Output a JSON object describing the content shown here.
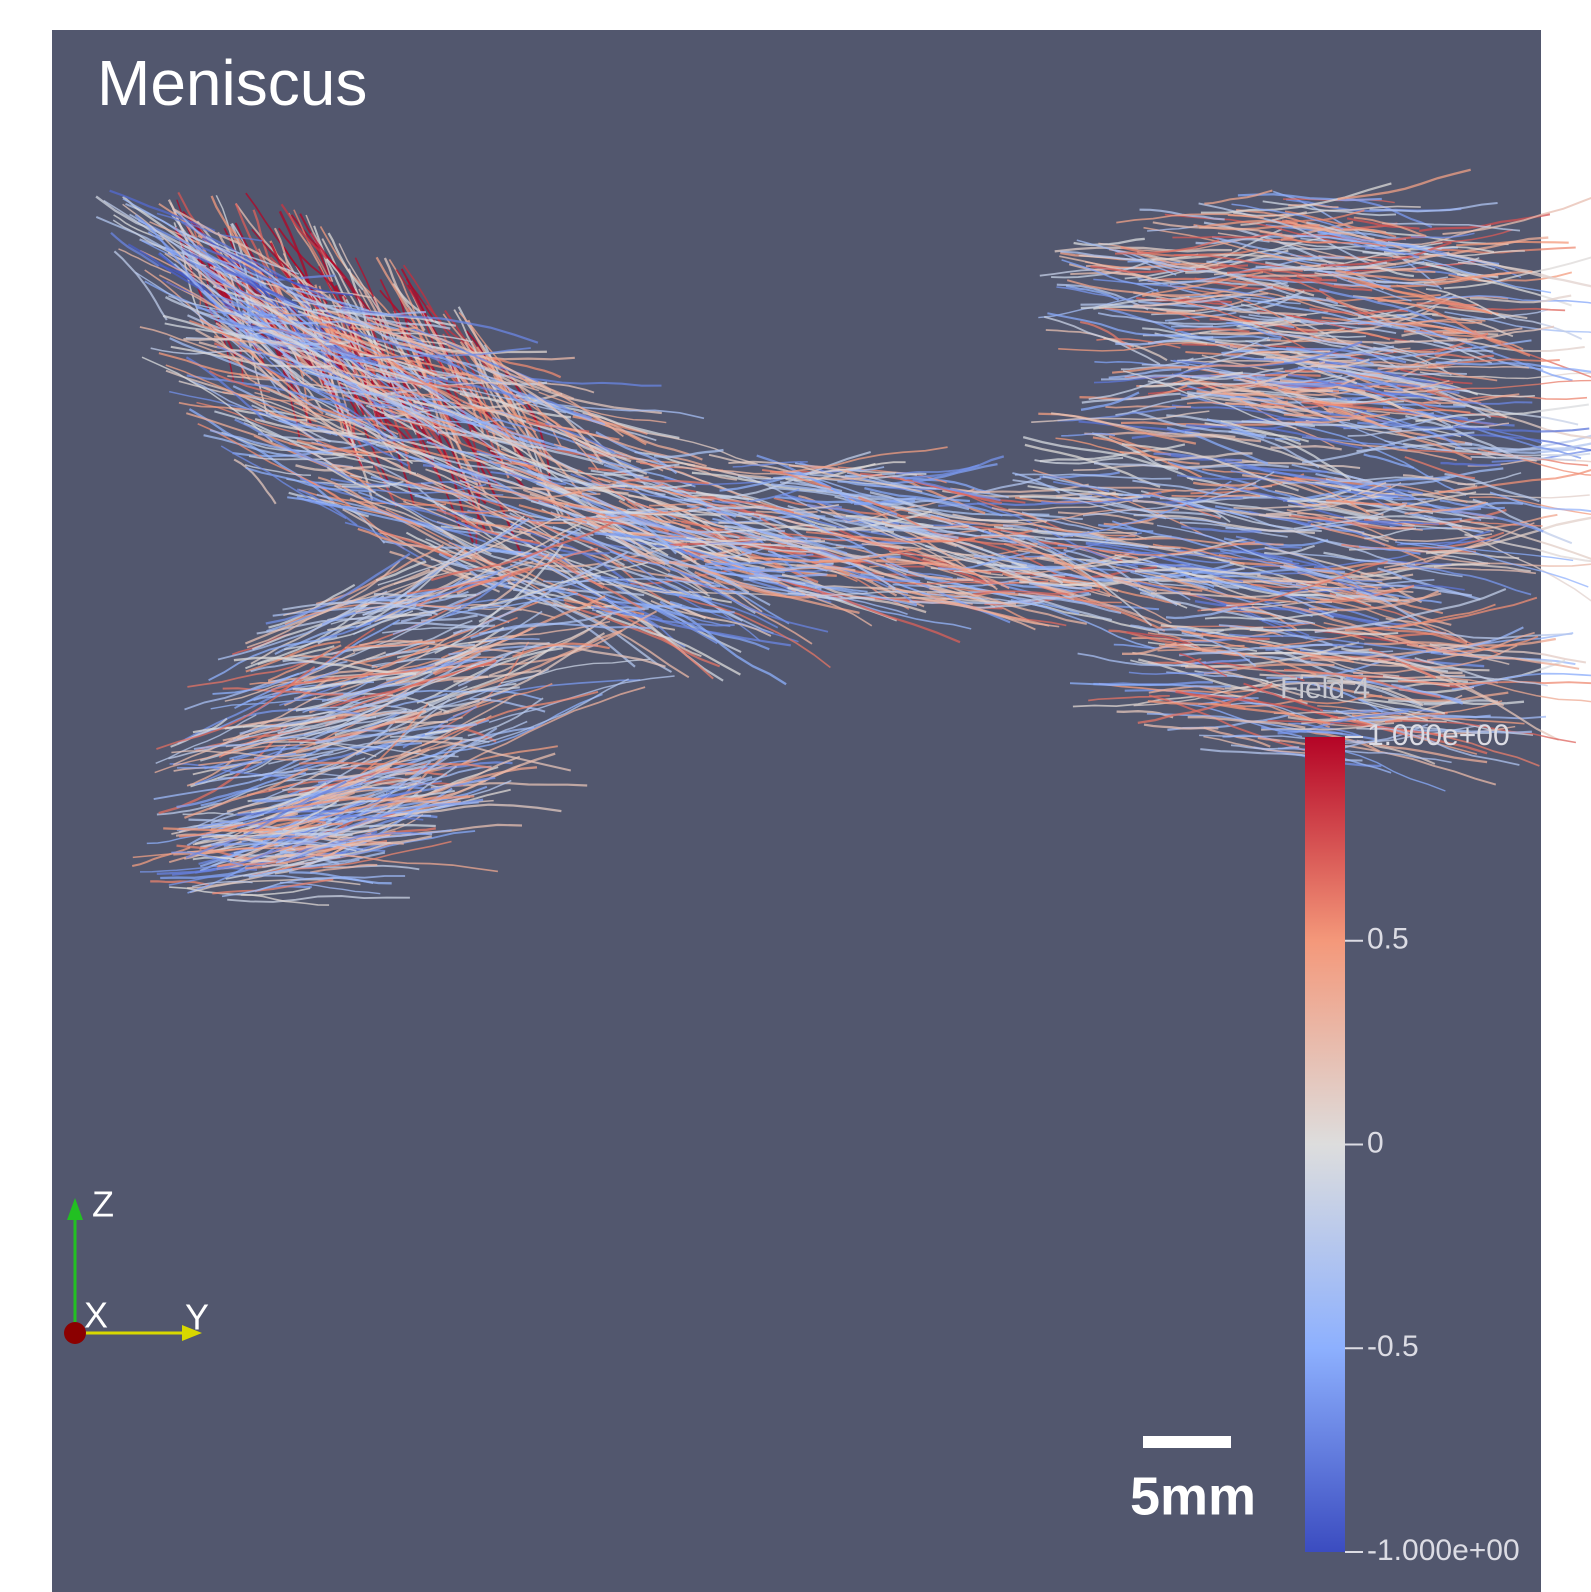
{
  "title": "Meniscus",
  "colorbar": {
    "title": "Field 4",
    "range": [
      -1,
      1
    ],
    "ticks": [
      {
        "value": 1,
        "label": "1.000e+00"
      },
      0.5,
      0,
      -0.5,
      {
        "value": -1,
        "label": "-1.000e+00"
      }
    ]
  },
  "scale_bar": {
    "label": "5mm"
  },
  "axes": {
    "z": "Z",
    "x": "X",
    "y": "Y"
  }
}
